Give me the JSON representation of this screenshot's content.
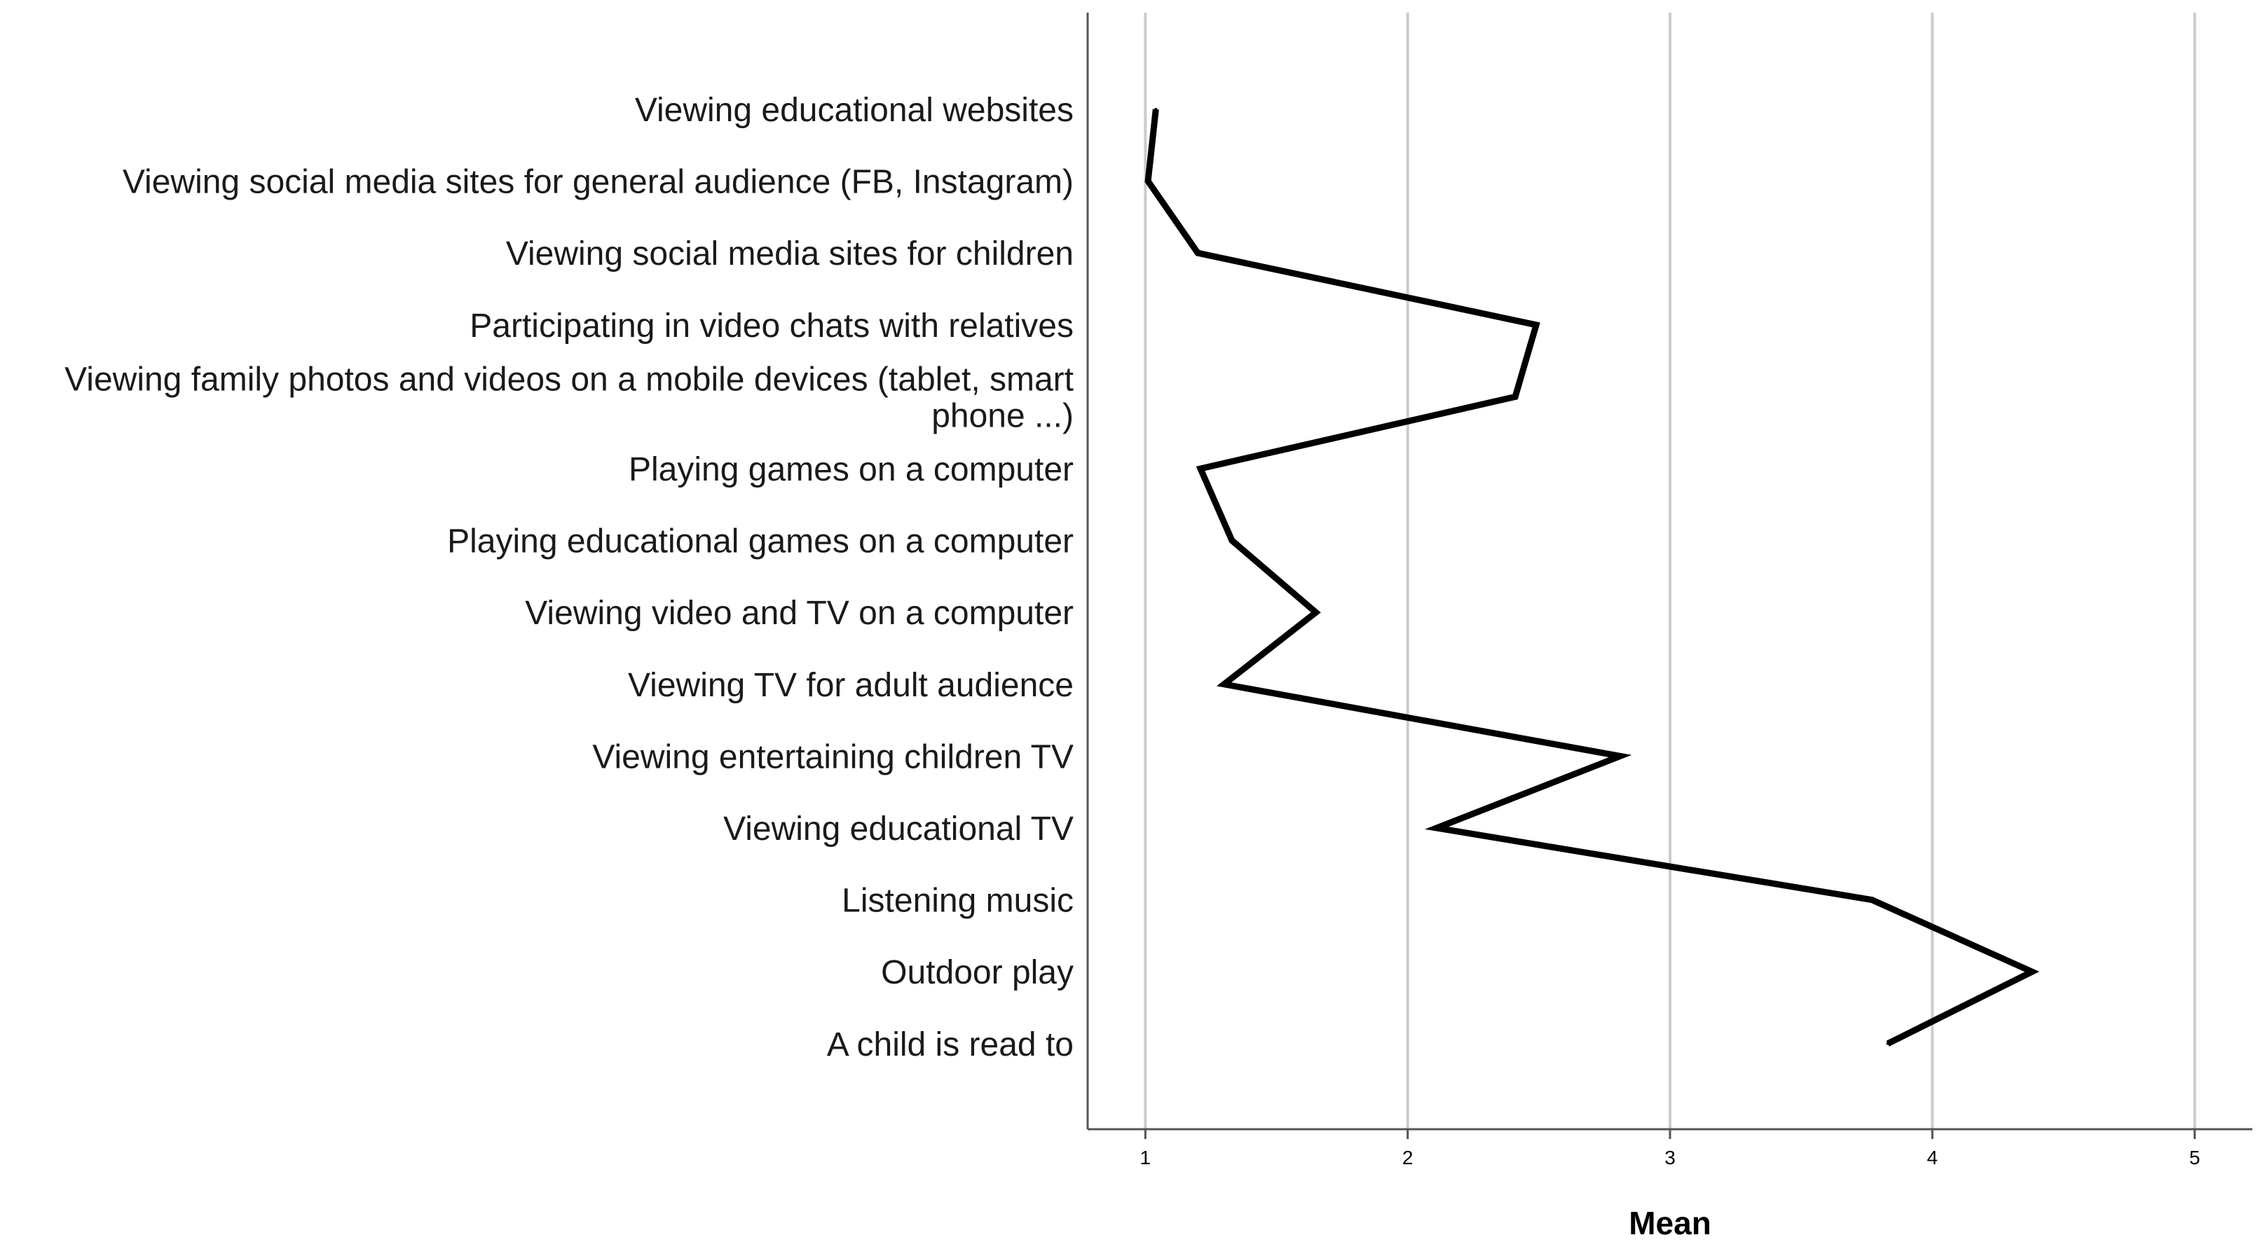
{
  "chart_data": {
    "type": "line",
    "orientation": "horizontal",
    "title": "",
    "xlabel": "Mean",
    "ylabel": "",
    "xlim": [
      0.78,
      5.22
    ],
    "x_ticks": [
      1,
      2,
      3,
      4,
      5
    ],
    "grid": "vertical",
    "colors": {
      "line": "#000000",
      "grid": "#cccccc",
      "axis": "#555555"
    },
    "categories": [
      "Viewing educational websites",
      "Viewing social media sites for general audience (FB, Instagram)",
      "Viewing social media sites for children",
      "Participating in video chats with relatives",
      "Viewing family photos and videos on a mobile devices (tablet, smart phone ...)",
      "Playing games on a computer",
      "Playing educational games on a computer",
      "Viewing video and TV on a computer",
      "Viewing TV for adult audience",
      "Viewing entertaining children TV",
      "Viewing educational TV",
      "Listening music",
      "Outdoor play",
      "A child is read to"
    ],
    "category_lines": [
      [
        "Viewing educational websites"
      ],
      [
        "Viewing social media sites for general audience (FB, Instagram)"
      ],
      [
        "Viewing social media sites for children"
      ],
      [
        "Participating in video chats with relatives"
      ],
      [
        "Viewing family photos and videos on a mobile devices (tablet, smart",
        "phone ...)"
      ],
      [
        "Playing games on a computer"
      ],
      [
        "Playing educational games on a computer"
      ],
      [
        "Viewing video and TV on a computer"
      ],
      [
        "Viewing TV for adult audience"
      ],
      [
        "Viewing entertaining children TV"
      ],
      [
        "Viewing educational TV"
      ],
      [
        "Listening music"
      ],
      [
        "Outdoor play"
      ],
      [
        "A child is read to"
      ]
    ],
    "series": [
      {
        "values": [
          1.04,
          1.01,
          1.2,
          2.49,
          2.41,
          1.21,
          1.33,
          1.65,
          1.3,
          2.81,
          2.11,
          3.77,
          4.38,
          3.83
        ]
      }
    ]
  }
}
